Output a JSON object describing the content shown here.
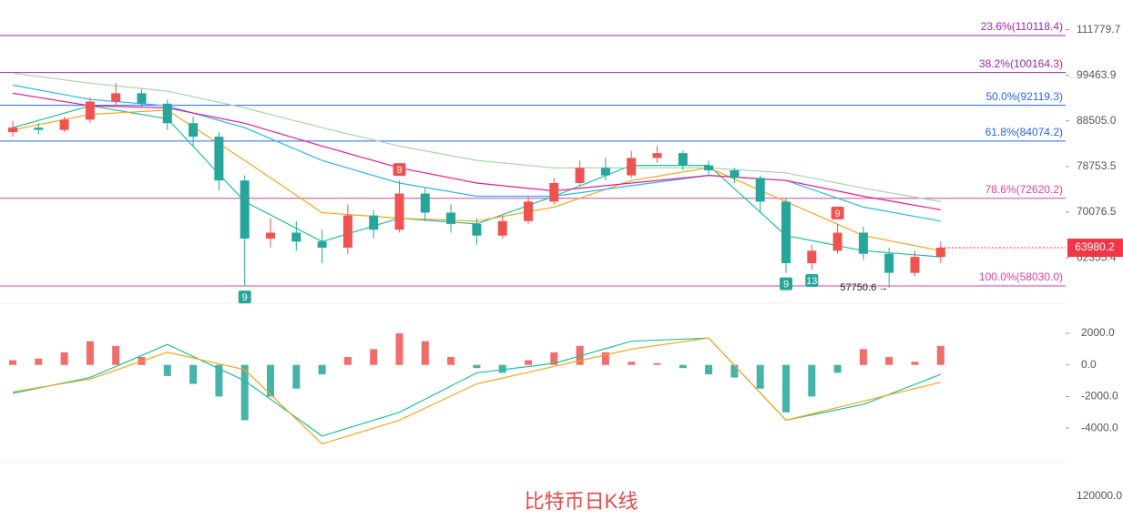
{
  "chart_data": {
    "type": "candlestick",
    "title": "比特币日K线",
    "scale": "log",
    "ylim": [
      55900,
      120600
    ],
    "yticks": [
      111779.7,
      99463.9,
      {
        "value": 88505,
        "label": "88505.0"
      },
      78753.5,
      70076.5,
      62355.4
    ],
    "up_color": "#ef5350",
    "down_color": "#26a69a",
    "last_price_color": "#f23645",
    "candles": {
      "open": [
        86000,
        87000,
        86500,
        88800,
        93000,
        95000,
        92500,
        88000,
        85000,
        76000,
        65500,
        66500,
        65000,
        64000,
        69500,
        67000,
        73500,
        70000,
        68000,
        66000,
        68500,
        72000,
        75500,
        78500,
        77000,
        80500,
        81500,
        79000,
        78000,
        76500,
        72000,
        61500,
        63500,
        66500,
        63000,
        60000,
        62500
      ],
      "high": [
        88500,
        88000,
        89500,
        94000,
        97500,
        96000,
        93500,
        89500,
        86000,
        77000,
        69000,
        68500,
        67000,
        71500,
        70500,
        76000,
        74500,
        71500,
        69000,
        69500,
        73000,
        76500,
        80000,
        80500,
        82000,
        83000,
        82000,
        80000,
        78500,
        77000,
        72500,
        64500,
        68000,
        67500,
        64000,
        63500,
        65000
      ],
      "low": [
        85000,
        85500,
        86000,
        88000,
        92000,
        91500,
        86500,
        83000,
        74000,
        58000,
        64000,
        63500,
        61500,
        63000,
        65500,
        66500,
        68500,
        66500,
        64500,
        65500,
        68000,
        71500,
        75000,
        76000,
        76500,
        79500,
        78000,
        77000,
        75500,
        70000,
        60000,
        60500,
        63000,
        62000,
        57750.6,
        59500,
        61500
      ],
      "close": [
        87000,
        86500,
        88800,
        93000,
        95000,
        92500,
        88000,
        85000,
        76000,
        65500,
        66500,
        65000,
        64000,
        69500,
        67000,
        73500,
        70000,
        68000,
        66000,
        68500,
        72000,
        75500,
        78500,
        77000,
        80500,
        81500,
        79000,
        78000,
        76500,
        72000,
        61500,
        63500,
        66500,
        63000,
        60000,
        62500,
        63980.2
      ]
    },
    "low_label_index": 34,
    "fib_levels": [
      {
        "value": 110118.4,
        "label": "23.6%(110118.4)",
        "color": "#9c27b0"
      },
      {
        "value": 100164.3,
        "label": "38.2%(100164.3)",
        "color": "#9c27b0"
      },
      {
        "value": 92119.3,
        "label": "50.0%(92119.3)",
        "color": "#2962ff"
      },
      {
        "value": 84074.2,
        "label": "61.8%(84074.2)",
        "color": "#2962ff"
      },
      {
        "value": 72620.2,
        "label": "78.6%(72620.2)",
        "color": "#e040a0"
      },
      {
        "value": 58030.0,
        "label": "100.0%(58030.0)",
        "color": "#e040a0"
      }
    ],
    "moving_averages": [
      {
        "color": "#1fbf9f",
        "x": [
          0,
          3,
          6,
          9,
          12,
          15,
          18,
          21,
          24,
          27,
          30,
          33,
          36
        ],
        "values": [
          87000,
          92000,
          89000,
          72000,
          65000,
          69000,
          68000,
          73000,
          79000,
          79000,
          66000,
          63500,
          62500
        ]
      },
      {
        "color": "#f5a623",
        "x": [
          0,
          3,
          6,
          9,
          12,
          15,
          18,
          21,
          24,
          27,
          30,
          33,
          36
        ],
        "values": [
          86500,
          90000,
          91000,
          80000,
          70000,
          69000,
          68500,
          71000,
          76000,
          78500,
          72000,
          66000,
          63500
        ]
      },
      {
        "color": "#29b6f6",
        "x": [
          0,
          3,
          6,
          9,
          12,
          15,
          18,
          21,
          24,
          27,
          30,
          33,
          36
        ],
        "values": [
          97000,
          93500,
          92000,
          87000,
          80000,
          75500,
          73000,
          73000,
          75000,
          77000,
          76000,
          71000,
          68500
        ]
      },
      {
        "color": "#e91e8c",
        "x": [
          0,
          3,
          6,
          9,
          12,
          15,
          18,
          21,
          24,
          27,
          30,
          33,
          36
        ],
        "values": [
          95000,
          92000,
          91500,
          88000,
          83000,
          78500,
          75500,
          74000,
          75500,
          77000,
          76000,
          73000,
          70500
        ]
      },
      {
        "color": "#a5d6a7",
        "x": [
          0,
          3,
          6,
          9,
          12,
          15,
          18,
          21,
          24,
          27,
          30,
          33,
          36
        ],
        "values": [
          100000,
          97500,
          95500,
          91500,
          87000,
          83000,
          80000,
          78500,
          78500,
          78500,
          77500,
          74500,
          72000
        ]
      }
    ],
    "signals": [
      {
        "index": 9,
        "text": "9",
        "position": "below",
        "color": "#26a69a"
      },
      {
        "index": 15,
        "text": "9",
        "position": "above",
        "color": "#ef5350"
      },
      {
        "index": 30,
        "text": "9",
        "position": "below",
        "color": "#26a69a"
      },
      {
        "index": 31,
        "text": "13",
        "position": "below",
        "color": "#26a69a"
      },
      {
        "index": 32,
        "text": "9",
        "position": "above",
        "color": "#ef5350"
      }
    ],
    "macd": {
      "ylim": [
        -6300,
        3500
      ],
      "yticks": [
        {
          "value": 2000,
          "label": "2000.0"
        },
        {
          "value": 0,
          "label": "0.0"
        },
        {
          "value": -2000,
          "label": "-2000.0"
        },
        {
          "value": -4000,
          "label": "-4000.0"
        }
      ],
      "histogram": {
        "up_color": "#ef5350",
        "down_color": "#26a69a",
        "values": [
          300,
          400,
          800,
          1500,
          1200,
          500,
          -700,
          -1200,
          -2000,
          -3500,
          -2000,
          -1500,
          -600,
          500,
          1000,
          2000,
          1500,
          500,
          -200,
          -500,
          300,
          800,
          1200,
          800,
          200,
          100,
          -200,
          -600,
          -800,
          -1500,
          -3000,
          -2000,
          -500,
          1000,
          500,
          200,
          1200
        ]
      },
      "lines": [
        {
          "color": "#1fbf9f",
          "x": [
            0,
            3,
            6,
            9,
            12,
            15,
            18,
            21,
            24,
            27,
            30,
            33,
            36
          ],
          "values": [
            -1800,
            -800,
            1300,
            -1000,
            -4500,
            -3000,
            -500,
            100,
            1500,
            1700,
            -3500,
            -2500,
            -600
          ]
        },
        {
          "color": "#f5a623",
          "x": [
            0,
            3,
            6,
            9,
            12,
            15,
            18,
            21,
            24,
            27,
            30,
            33,
            36
          ],
          "values": [
            -1700,
            -900,
            800,
            -300,
            -5000,
            -3500,
            -1200,
            -100,
            1000,
            1700,
            -3500,
            -2300,
            -1100
          ]
        }
      ]
    },
    "volume_axis_label": "120000.0"
  }
}
